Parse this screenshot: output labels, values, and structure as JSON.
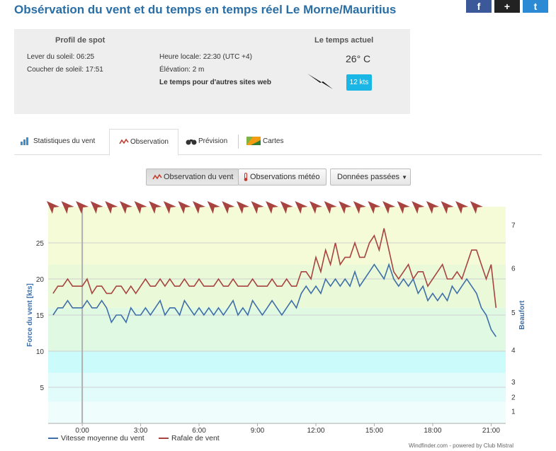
{
  "header": {
    "title": "Obsérvation du vent et du temps en temps réel Le Morne/Mauritius"
  },
  "social": {
    "facebook": "f",
    "googleplus": "+",
    "twitter": "t"
  },
  "spot": {
    "heading": "Profil de spot",
    "sunrise": "Lever du soleil: 06:25",
    "sunset": "Coucher de soleil: 17:51",
    "localtime": "Heure locale: 22:30 (UTC +4)",
    "elevation": "Élévation: 2 m",
    "other_sites": "Le temps pour d'autres sites web"
  },
  "current": {
    "heading": "Le temps actuel",
    "temperature": "26° C",
    "speed": "12 kts"
  },
  "tabs": [
    {
      "label": "Statistiques du vent",
      "icon": "bar-chart-icon"
    },
    {
      "label": "Observation",
      "icon": "wind-line-icon",
      "active": true
    },
    {
      "label": "Prévision",
      "icon": "binoculars-icon"
    },
    {
      "label": "Cartes",
      "icon": "map-icon"
    }
  ],
  "buttons": {
    "wind": "Observation du vent",
    "meteo": "Observations météo",
    "past": "Données passées"
  },
  "chart_data": {
    "type": "line",
    "ylabel": "Force du vent [kts]",
    "ylabel_right": "Beaufort",
    "ylim": [
      0,
      30
    ],
    "y_ticks": [
      5,
      10,
      15,
      20,
      25
    ],
    "beaufort_ticks": [
      {
        "label": "1",
        "kts": 1.7
      },
      {
        "label": "2",
        "kts": 3.7
      },
      {
        "label": "3",
        "kts": 5.8
      },
      {
        "label": "4",
        "kts": 10.2
      },
      {
        "label": "5",
        "kts": 15.4
      },
      {
        "label": "6",
        "kts": 21.5
      },
      {
        "label": "7",
        "kts": 27.5
      }
    ],
    "xlim": [
      -1.75,
      21.75
    ],
    "x_ticks": [
      "0:00",
      "3:00",
      "6:00",
      "9:00",
      "12:00",
      "15:00",
      "18:00",
      "21:00"
    ],
    "x_tick_hours": [
      0,
      3,
      6,
      9,
      12,
      15,
      18,
      21
    ],
    "bands": [
      {
        "from": 0,
        "to": 3,
        "color": "#f0fdfd"
      },
      {
        "from": 3,
        "to": 7,
        "color": "#e2fcfc"
      },
      {
        "from": 7,
        "to": 10,
        "color": "#ccfbfb"
      },
      {
        "from": 10,
        "to": 16,
        "color": "#dff9e3"
      },
      {
        "from": 16,
        "to": 22,
        "color": "#eaf9d8"
      },
      {
        "from": 22,
        "to": 30,
        "color": "#f4fbd6"
      }
    ],
    "series": [
      {
        "name": "Vitesse moyenne du vent",
        "color": "#3f6fa8",
        "values": [
          [
            -1.5,
            15
          ],
          [
            -1.25,
            16
          ],
          [
            -1.0,
            16
          ],
          [
            -0.75,
            17
          ],
          [
            -0.5,
            16
          ],
          [
            -0.25,
            16
          ],
          [
            0,
            16
          ],
          [
            0.25,
            17
          ],
          [
            0.5,
            16
          ],
          [
            0.75,
            16
          ],
          [
            1,
            17
          ],
          [
            1.25,
            16
          ],
          [
            1.5,
            14
          ],
          [
            1.75,
            15
          ],
          [
            2,
            15
          ],
          [
            2.25,
            14
          ],
          [
            2.5,
            16
          ],
          [
            2.75,
            15
          ],
          [
            3,
            15
          ],
          [
            3.25,
            16
          ],
          [
            3.5,
            15
          ],
          [
            3.75,
            16
          ],
          [
            4,
            17
          ],
          [
            4.25,
            15
          ],
          [
            4.5,
            16
          ],
          [
            4.75,
            16
          ],
          [
            5,
            15
          ],
          [
            5.25,
            17
          ],
          [
            5.5,
            16
          ],
          [
            5.75,
            15
          ],
          [
            6,
            16
          ],
          [
            6.25,
            15
          ],
          [
            6.5,
            16
          ],
          [
            6.75,
            15
          ],
          [
            7,
            16
          ],
          [
            7.25,
            15
          ],
          [
            7.5,
            16
          ],
          [
            7.75,
            17
          ],
          [
            8,
            15
          ],
          [
            8.25,
            16
          ],
          [
            8.5,
            15
          ],
          [
            8.75,
            17
          ],
          [
            9,
            16
          ],
          [
            9.25,
            15
          ],
          [
            9.5,
            16
          ],
          [
            9.75,
            17
          ],
          [
            10,
            16
          ],
          [
            10.25,
            15
          ],
          [
            10.5,
            16
          ],
          [
            10.75,
            17
          ],
          [
            11,
            16
          ],
          [
            11.25,
            18
          ],
          [
            11.5,
            19
          ],
          [
            11.75,
            18
          ],
          [
            12,
            19
          ],
          [
            12.25,
            18
          ],
          [
            12.5,
            20
          ],
          [
            12.75,
            19
          ],
          [
            13,
            20
          ],
          [
            13.25,
            19
          ],
          [
            13.5,
            20
          ],
          [
            13.75,
            19
          ],
          [
            14,
            21
          ],
          [
            14.25,
            19
          ],
          [
            14.5,
            20
          ],
          [
            14.75,
            21
          ],
          [
            15,
            22
          ],
          [
            15.25,
            21
          ],
          [
            15.5,
            20
          ],
          [
            15.75,
            22
          ],
          [
            16,
            20
          ],
          [
            16.25,
            19
          ],
          [
            16.5,
            20
          ],
          [
            16.75,
            19
          ],
          [
            17,
            20
          ],
          [
            17.25,
            18
          ],
          [
            17.5,
            19
          ],
          [
            17.75,
            17
          ],
          [
            18,
            18
          ],
          [
            18.25,
            17
          ],
          [
            18.5,
            18
          ],
          [
            18.75,
            17
          ],
          [
            19,
            19
          ],
          [
            19.25,
            18
          ],
          [
            19.5,
            19
          ],
          [
            19.75,
            20
          ],
          [
            20,
            19
          ],
          [
            20.25,
            18
          ],
          [
            20.5,
            16
          ],
          [
            20.75,
            15
          ],
          [
            21,
            13
          ],
          [
            21.25,
            12
          ]
        ]
      },
      {
        "name": "Rafale de vent",
        "color": "#a84440",
        "values": [
          [
            -1.5,
            18
          ],
          [
            -1.25,
            19
          ],
          [
            -1.0,
            19
          ],
          [
            -0.75,
            20
          ],
          [
            -0.5,
            19
          ],
          [
            -0.25,
            19
          ],
          [
            0,
            19
          ],
          [
            0.25,
            20
          ],
          [
            0.5,
            18
          ],
          [
            0.75,
            19
          ],
          [
            1,
            19
          ],
          [
            1.25,
            18
          ],
          [
            1.5,
            18
          ],
          [
            1.75,
            19
          ],
          [
            2,
            19
          ],
          [
            2.25,
            18
          ],
          [
            2.5,
            19
          ],
          [
            2.75,
            18
          ],
          [
            3,
            19
          ],
          [
            3.25,
            20
          ],
          [
            3.5,
            19
          ],
          [
            3.75,
            19
          ],
          [
            4,
            20
          ],
          [
            4.25,
            19
          ],
          [
            4.5,
            20
          ],
          [
            4.75,
            19
          ],
          [
            5,
            19
          ],
          [
            5.25,
            20
          ],
          [
            5.5,
            19
          ],
          [
            5.75,
            19
          ],
          [
            6,
            20
          ],
          [
            6.25,
            19
          ],
          [
            6.5,
            19
          ],
          [
            6.75,
            19
          ],
          [
            7,
            20
          ],
          [
            7.25,
            19
          ],
          [
            7.5,
            19
          ],
          [
            7.75,
            20
          ],
          [
            8,
            19
          ],
          [
            8.25,
            19
          ],
          [
            8.5,
            19
          ],
          [
            8.75,
            20
          ],
          [
            9,
            19
          ],
          [
            9.25,
            19
          ],
          [
            9.5,
            19
          ],
          [
            9.75,
            20
          ],
          [
            10,
            19
          ],
          [
            10.25,
            19
          ],
          [
            10.5,
            20
          ],
          [
            10.75,
            19
          ],
          [
            11,
            19
          ],
          [
            11.25,
            21
          ],
          [
            11.5,
            21
          ],
          [
            11.75,
            20
          ],
          [
            12,
            23
          ],
          [
            12.25,
            21
          ],
          [
            12.5,
            24
          ],
          [
            12.75,
            22
          ],
          [
            13,
            25
          ],
          [
            13.25,
            22
          ],
          [
            13.5,
            23
          ],
          [
            13.75,
            23
          ],
          [
            14,
            25
          ],
          [
            14.25,
            23
          ],
          [
            14.5,
            23
          ],
          [
            14.75,
            25
          ],
          [
            15,
            26
          ],
          [
            15.25,
            24
          ],
          [
            15.5,
            27
          ],
          [
            15.75,
            24
          ],
          [
            16,
            21
          ],
          [
            16.25,
            20
          ],
          [
            16.5,
            21
          ],
          [
            16.75,
            22
          ],
          [
            17,
            20
          ],
          [
            17.25,
            21
          ],
          [
            17.5,
            21
          ],
          [
            17.75,
            19
          ],
          [
            18,
            20
          ],
          [
            18.25,
            21
          ],
          [
            18.5,
            22
          ],
          [
            18.75,
            20
          ],
          [
            19,
            20
          ],
          [
            19.25,
            21
          ],
          [
            19.5,
            20
          ],
          [
            19.75,
            22
          ],
          [
            20,
            24
          ],
          [
            20.25,
            24
          ],
          [
            20.5,
            22
          ],
          [
            20.75,
            20
          ],
          [
            21,
            22
          ],
          [
            21.25,
            16
          ]
        ]
      }
    ],
    "direction_arrows": {
      "hours": [
        -1.5,
        -0.75,
        0,
        0.75,
        1.5,
        2.25,
        3,
        3.75,
        4.5,
        5.25,
        6,
        6.75,
        7.5,
        8.25,
        9,
        9.75,
        10.5,
        11.25,
        12,
        12.75,
        13.5,
        14.25,
        15,
        15.75,
        16.5,
        17.25,
        18,
        18.75,
        19.5,
        20.25
      ],
      "bearing_deg": 135,
      "color": "#a84440"
    },
    "current_time_line_hour": 0,
    "credit": "Windfinder.com - powered by Club Mistral"
  }
}
